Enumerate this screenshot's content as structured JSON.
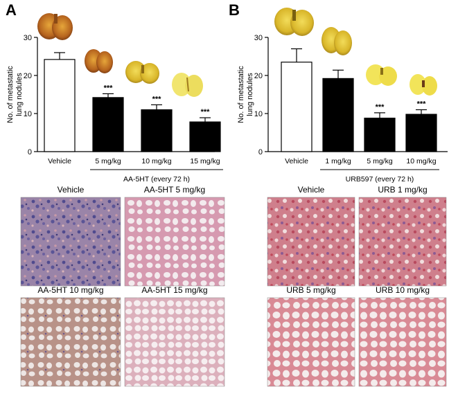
{
  "panels": [
    {
      "letter": "A"
    },
    {
      "letter": "B"
    }
  ],
  "colors": {
    "filled_bar": "#000000",
    "open_bar": "#ffffff",
    "lung_yellow": "#e8c83a",
    "lung_tissue_pink": "#d9a3b8",
    "lung_tissue_blue": "#8a86b8"
  },
  "chart_data": [
    {
      "type": "bar",
      "ylabel": "No. of metastatic lung nodules",
      "xlabel": "AA-5HT (every 72 h)",
      "ylim": [
        0,
        30
      ],
      "yticks": [
        0,
        10,
        20,
        30
      ],
      "categories": [
        "Vehicle",
        "5 mg/kg",
        "10 mg/kg",
        "15 mg/kg"
      ],
      "values": [
        24.2,
        14.2,
        11.0,
        7.8
      ],
      "errors": [
        1.8,
        1.0,
        1.3,
        1.1
      ],
      "fills": [
        "open",
        "filled",
        "filled",
        "filled"
      ],
      "significance": [
        "",
        "***",
        "***",
        "***"
      ],
      "legend": "none",
      "grid": false
    },
    {
      "type": "bar",
      "ylabel": "No. of metastatic lung nodules",
      "xlabel": "URB597 (every 72 h)",
      "ylim": [
        0,
        30
      ],
      "yticks": [
        0,
        10,
        20,
        30
      ],
      "categories": [
        "Vehicle",
        "1 mg/kg",
        "5 mg/kg",
        "10 mg/kg"
      ],
      "values": [
        23.5,
        19.2,
        8.8,
        9.8
      ],
      "errors": [
        3.5,
        2.2,
        1.4,
        1.2
      ],
      "fills": [
        "open",
        "filled",
        "filled",
        "filled"
      ],
      "significance": [
        "",
        "",
        "***",
        "***"
      ],
      "legend": "none",
      "grid": false
    }
  ],
  "histology": [
    [
      {
        "label": "Vehicle",
        "style": "dense-blue"
      },
      {
        "label": "AA-5HT 5 mg/kg",
        "style": "alveolar-pink"
      },
      {
        "label": "AA-5HT 10 mg/kg",
        "style": "alveolar-brown"
      },
      {
        "label": "AA-5HT 15 mg/kg",
        "style": "alveolar-light"
      }
    ],
    [
      {
        "label": "Vehicle",
        "style": "dense-red"
      },
      {
        "label": "URB 1 mg/kg",
        "style": "dense-red"
      },
      {
        "label": "URB 5 mg/kg",
        "style": "alveolar-red"
      },
      {
        "label": "URB 10 mg/kg",
        "style": "alveolar-red"
      }
    ]
  ]
}
